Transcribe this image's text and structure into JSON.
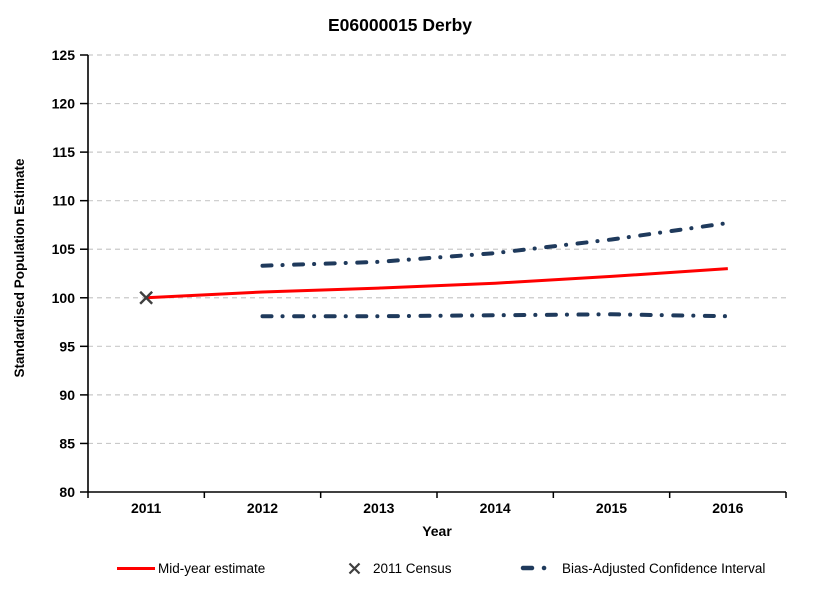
{
  "window": {
    "background": "#FFFFFF"
  },
  "chart_data": {
    "type": "line",
    "title": "E06000015 Derby",
    "xlabel": "Year",
    "ylabel": "Standardised Population Estimate",
    "ylim": [
      80,
      125
    ],
    "y_ticks": [
      80,
      85,
      90,
      95,
      100,
      105,
      110,
      115,
      120,
      125
    ],
    "categories": [
      "2011",
      "2012",
      "2013",
      "2014",
      "2015",
      "2016"
    ],
    "grid": "horizontal-dashed",
    "legend_position": "bottom",
    "series": [
      {
        "name": "Mid-year estimate",
        "style": "solid",
        "color": "#FF0000",
        "x": [
          "2011",
          "2012",
          "2013",
          "2014",
          "2015",
          "2016"
        ],
        "values": [
          100,
          100.6,
          101.0,
          101.5,
          102.2,
          103.0
        ]
      },
      {
        "name": "2011 Census",
        "style": "x-marker",
        "color": "#3F3F3F",
        "x": [
          "2011"
        ],
        "values": [
          100
        ]
      },
      {
        "name": "Bias-Adjusted Confidence Interval (upper)",
        "style": "dashdot",
        "color": "#1F3A5C",
        "x": [
          "2012",
          "2013",
          "2014",
          "2015",
          "2016"
        ],
        "values": [
          103.3,
          103.7,
          104.6,
          106.0,
          107.7
        ]
      },
      {
        "name": "Bias-Adjusted Confidence Interval (lower)",
        "style": "dashdot",
        "color": "#1F3A5C",
        "x": [
          "2012",
          "2013",
          "2014",
          "2015",
          "2016"
        ],
        "values": [
          98.1,
          98.1,
          98.2,
          98.3,
          98.1
        ]
      }
    ],
    "colors": {
      "gridline": "#C9C9C9",
      "axis": "#000000",
      "text": "#000000",
      "midyear_line": "#FF0000",
      "census_marker": "#3F3F3F",
      "confidence_interval": "#1F3A5C"
    }
  },
  "legend": {
    "items": [
      {
        "label": "Mid-year estimate",
        "swatch": "red-solid-line"
      },
      {
        "label": "2011 Census",
        "swatch": "x-marker"
      },
      {
        "label": "Bias-Adjusted Confidence Interval",
        "swatch": "navy-dashdot-line"
      }
    ]
  }
}
